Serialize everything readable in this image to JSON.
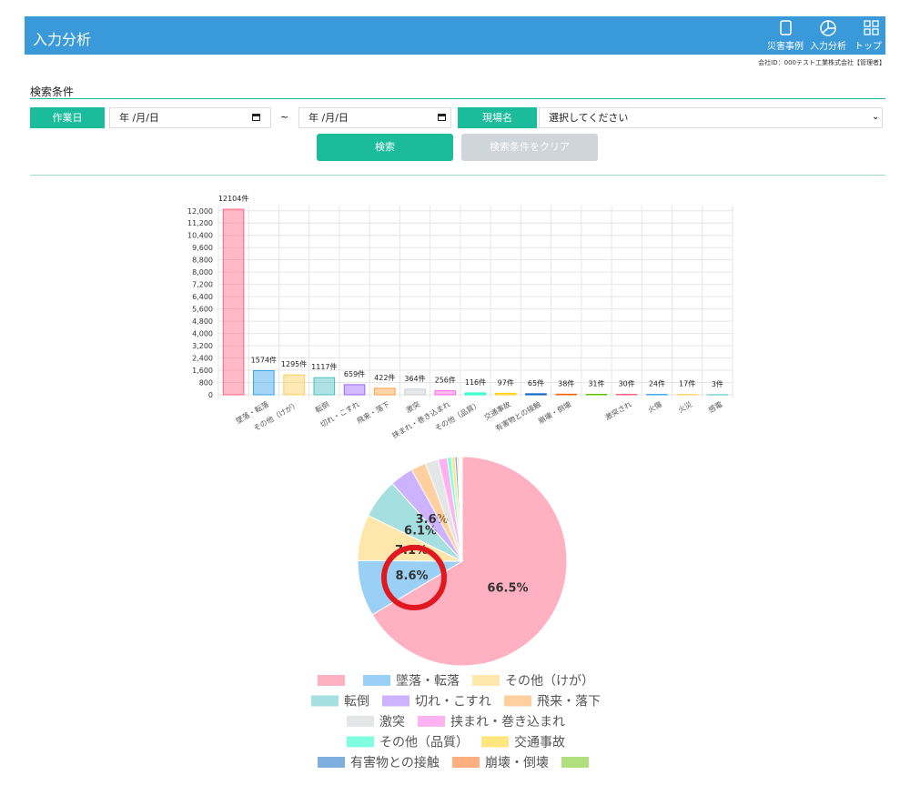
{
  "header": {
    "title": "入力分析",
    "nav": [
      "災害事例",
      "入力分析",
      "トップ"
    ]
  },
  "company": "会社ID：000テスト工業株式会社【管理者】",
  "search": {
    "heading": "検索条件",
    "date_label": "作業日",
    "date_placeholder": "年 /月/日",
    "range_sep": "~",
    "site_label": "現場名",
    "site_placeholder": "選択してください",
    "search_button": "検索",
    "clear_button": "検索条件をクリア"
  },
  "chart_data": [
    {
      "type": "bar",
      "categories": [
        null,
        "墜落・転落",
        "その他（けが）",
        "転倒",
        "切れ・こすれ",
        "飛来・落下",
        "激突",
        "挟まれ・巻き込まれ",
        "その他（品質）",
        "交通事故",
        "有害物との接触",
        "崩壊・倒壊",
        null,
        "激突され",
        "火傷",
        "火災",
        "感電"
      ],
      "values": [
        12104,
        1574,
        1295,
        1117,
        659,
        422,
        364,
        256,
        116,
        97,
        65,
        38,
        31,
        30,
        24,
        17,
        3
      ],
      "value_labels": [
        "12104件",
        "1574件",
        "1295件",
        "1117件",
        "659件",
        "422件",
        "364件",
        "256件",
        "116件",
        "97件",
        "65件",
        "38件",
        "31件",
        "30件",
        "24件",
        "17件",
        "3件"
      ],
      "colors": [
        "#ff6384",
        "#36a2eb",
        "#ffcd56",
        "#4bc0c0",
        "#9966ff",
        "#ff9f40",
        "#c9cbcf",
        "#ff66e0",
        "#00ffc0",
        "#ffcc00",
        "#0060c0",
        "#ff6000",
        "#60c000",
        "#ff6384",
        "#36a2eb",
        "#ffcd56",
        "#4bc0c0"
      ],
      "ylim": [
        0,
        12104
      ],
      "yticks": [
        0,
        800,
        {
          "value": 1600,
          "label": "1,600"
        },
        {
          "value": 2400,
          "label": "2,400"
        },
        {
          "value": 3200,
          "label": "3,200"
        },
        {
          "value": 4000,
          "label": "4,000"
        },
        {
          "value": 4800,
          "label": "4,800"
        },
        {
          "value": 5600,
          "label": "5,600"
        },
        {
          "value": 6400,
          "label": "6,400"
        },
        {
          "value": 7200,
          "label": "7,200"
        },
        {
          "value": 8000,
          "label": "8,000"
        },
        {
          "value": 8800,
          "label": "8,800"
        },
        {
          "value": 9600,
          "label": "9,600"
        },
        {
          "value": 10400,
          "label": "10,400"
        },
        {
          "value": 11200,
          "label": "11,200"
        },
        {
          "value": 12000,
          "label": "12,000"
        }
      ],
      "grid": true
    },
    {
      "type": "pie",
      "legend": [
        null,
        "墜落・転落",
        "その他（けが）",
        "転倒",
        "切れ・こすれ",
        "飛来・落下",
        "激突",
        "挟まれ・巻き込まれ",
        "その他（品質）",
        "交通事故",
        "有害物との接触",
        "崩壊・倒壊",
        null
      ],
      "values": [
        66.46,
        8.64,
        7.11,
        6.13,
        3.62,
        2.32,
        2.0,
        1.41,
        0.64,
        0.53,
        0.36,
        0.21,
        0.17,
        0.16,
        0.13,
        0.09,
        0.02
      ],
      "value_labels": [
        "66.5%",
        "8.6%",
        "7.1%",
        "6.1%",
        "3.6%",
        null,
        null,
        null,
        null,
        null,
        null,
        null,
        null,
        null,
        null,
        null,
        null
      ],
      "colors": [
        "#ff6384",
        "#36a2eb",
        "#ffcd56",
        "#4bc0c0",
        "#9966ff",
        "#ff9f40",
        "#c9cbcf",
        "#ff66e0",
        "#00ffc0",
        "#ffcc00",
        "#0060c0",
        "#ff6000",
        "#60c000",
        "#ff6384",
        "#36a2eb",
        "#ffcd56",
        "#4bc0c0"
      ]
    }
  ]
}
